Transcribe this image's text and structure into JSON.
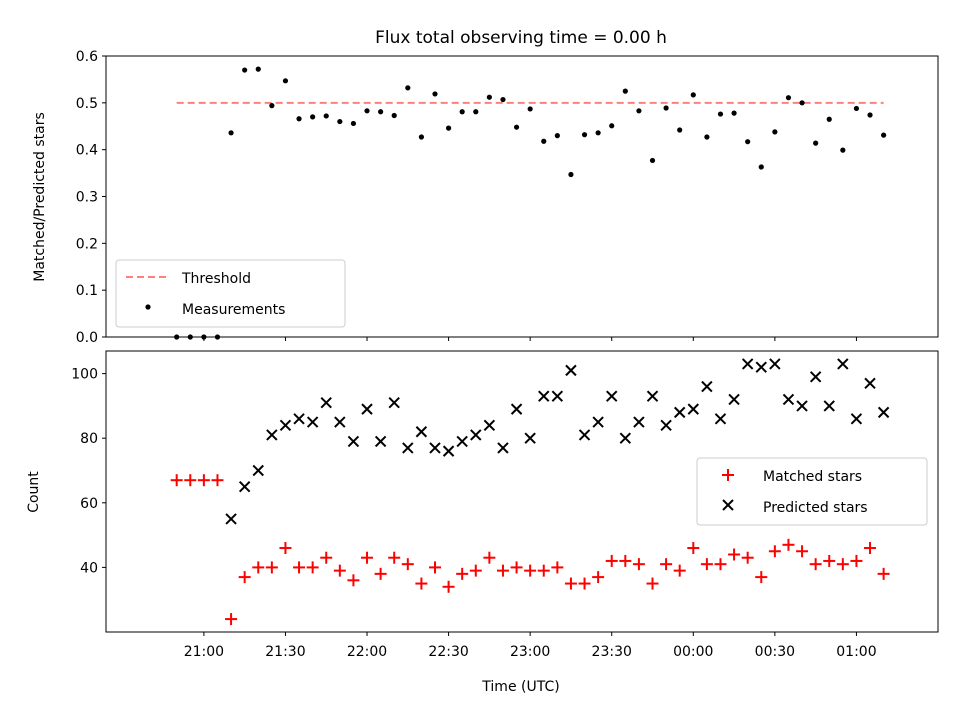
{
  "chart_data": [
    {
      "type": "scatter",
      "title": "Flux total observing time = 0.00 h",
      "ylabel": "Matched/Predicted stars",
      "xlim_hours": [
        20.4,
        25.5
      ],
      "ylim": [
        0,
        0.6
      ],
      "yticks": [
        0.0,
        0.1,
        0.2,
        0.3,
        0.4,
        0.5,
        0.6
      ],
      "ytick_labels": [
        "0.0",
        "0.1",
        "0.2",
        "0.3",
        "0.4",
        "0.5",
        "0.6"
      ],
      "legend": {
        "placement": "lower-left",
        "entries": [
          "Threshold",
          "Measurements"
        ]
      },
      "threshold": {
        "name": "Threshold",
        "value": 0.5,
        "x_start": "20:50",
        "x_end": "01:10",
        "color": "#ff7f7f"
      },
      "series": [
        {
          "name": "Measurements",
          "color": "#000000",
          "x": [
            "20:50",
            "20:55",
            "21:00",
            "21:05",
            "21:10",
            "21:15",
            "21:20",
            "21:25",
            "21:30",
            "21:35",
            "21:40",
            "21:45",
            "21:50",
            "21:55",
            "22:00",
            "22:05",
            "22:10",
            "22:15",
            "22:20",
            "22:25",
            "22:30",
            "22:35",
            "22:40",
            "22:45",
            "22:50",
            "22:55",
            "23:00",
            "23:05",
            "23:10",
            "23:15",
            "23:20",
            "23:25",
            "23:30",
            "23:35",
            "23:40",
            "23:45",
            "23:50",
            "23:55",
            "00:00",
            "00:05",
            "00:10",
            "00:15",
            "00:20",
            "00:25",
            "00:30",
            "00:35",
            "00:40",
            "00:45",
            "00:50",
            "00:55",
            "01:00",
            "01:05",
            "01:10"
          ],
          "y": [
            0.0,
            0.0,
            0.0,
            0.0,
            0.436,
            0.57,
            0.572,
            0.494,
            0.547,
            0.466,
            0.47,
            0.472,
            0.46,
            0.456,
            0.483,
            0.481,
            0.473,
            0.532,
            0.427,
            0.519,
            0.446,
            0.481,
            0.481,
            0.512,
            0.507,
            0.448,
            0.487,
            0.418,
            0.43,
            0.347,
            0.432,
            0.436,
            0.451,
            0.525,
            0.483,
            0.377,
            0.489,
            0.442,
            0.517,
            0.427,
            0.476,
            0.478,
            0.417,
            0.363,
            0.438,
            0.511,
            0.5,
            0.414,
            0.465,
            0.399,
            0.488,
            0.474,
            0.431
          ]
        }
      ]
    },
    {
      "type": "scatter",
      "xlabel": "Time (UTC)",
      "ylabel": "Count",
      "xlim_hours": [
        20.4,
        25.5
      ],
      "ylim": [
        20,
        107
      ],
      "yticks": [
        40,
        60,
        80,
        100
      ],
      "xtick_hours": [
        21.0,
        21.5,
        22.0,
        22.5,
        23.0,
        23.5,
        24.0,
        24.5,
        25.0
      ],
      "xtick_labels": [
        "21:00",
        "21:30",
        "22:00",
        "22:30",
        "23:00",
        "23:30",
        "00:00",
        "00:30",
        "01:00"
      ],
      "legend": {
        "placement": "center-right",
        "entries": [
          "Matched stars",
          "Predicted stars"
        ]
      },
      "series": [
        {
          "name": "Matched stars",
          "marker": "plus",
          "color": "#ff0000",
          "x": [
            "20:50",
            "20:55",
            "21:00",
            "21:05",
            "21:10",
            "21:15",
            "21:20",
            "21:25",
            "21:30",
            "21:35",
            "21:40",
            "21:45",
            "21:50",
            "21:55",
            "22:00",
            "22:05",
            "22:10",
            "22:15",
            "22:20",
            "22:25",
            "22:30",
            "22:35",
            "22:40",
            "22:45",
            "22:50",
            "22:55",
            "23:00",
            "23:05",
            "23:10",
            "23:15",
            "23:20",
            "23:25",
            "23:30",
            "23:35",
            "23:40",
            "23:45",
            "23:50",
            "23:55",
            "00:00",
            "00:05",
            "00:10",
            "00:15",
            "00:20",
            "00:25",
            "00:30",
            "00:35",
            "00:40",
            "00:45",
            "00:50",
            "00:55",
            "01:00",
            "01:05",
            "01:10"
          ],
          "y": [
            67,
            67,
            67,
            67,
            24,
            37,
            40,
            40,
            46,
            40,
            40,
            43,
            39,
            36,
            43,
            38,
            43,
            41,
            35,
            40,
            34,
            38,
            39,
            43,
            39,
            40,
            39,
            39,
            40,
            35,
            35,
            37,
            42,
            42,
            41,
            35,
            41,
            39,
            46,
            41,
            41,
            44,
            43,
            37,
            45,
            47,
            45,
            41,
            42,
            41,
            42,
            46,
            38
          ]
        },
        {
          "name": "Predicted stars",
          "marker": "x",
          "color": "#000000",
          "x": [
            "21:10",
            "21:15",
            "21:20",
            "21:25",
            "21:30",
            "21:35",
            "21:40",
            "21:45",
            "21:50",
            "21:55",
            "22:00",
            "22:05",
            "22:10",
            "22:15",
            "22:20",
            "22:25",
            "22:30",
            "22:35",
            "22:40",
            "22:45",
            "22:50",
            "22:55",
            "23:00",
            "23:05",
            "23:10",
            "23:15",
            "23:20",
            "23:25",
            "23:30",
            "23:35",
            "23:40",
            "23:45",
            "23:50",
            "23:55",
            "00:00",
            "00:05",
            "00:10",
            "00:15",
            "00:20",
            "00:25",
            "00:30",
            "00:35",
            "00:40",
            "00:45",
            "00:50",
            "00:55",
            "01:00",
            "01:05",
            "01:10"
          ],
          "y": [
            55,
            65,
            70,
            81,
            84,
            86,
            85,
            91,
            85,
            79,
            89,
            79,
            91,
            77,
            82,
            77,
            76,
            79,
            81,
            84,
            77,
            89,
            80,
            93,
            93,
            101,
            81,
            85,
            93,
            80,
            85,
            93,
            84,
            88,
            89,
            96,
            86,
            92,
            103,
            102,
            103,
            92,
            90,
            99,
            90,
            103,
            86,
            97,
            88
          ]
        }
      ]
    }
  ]
}
